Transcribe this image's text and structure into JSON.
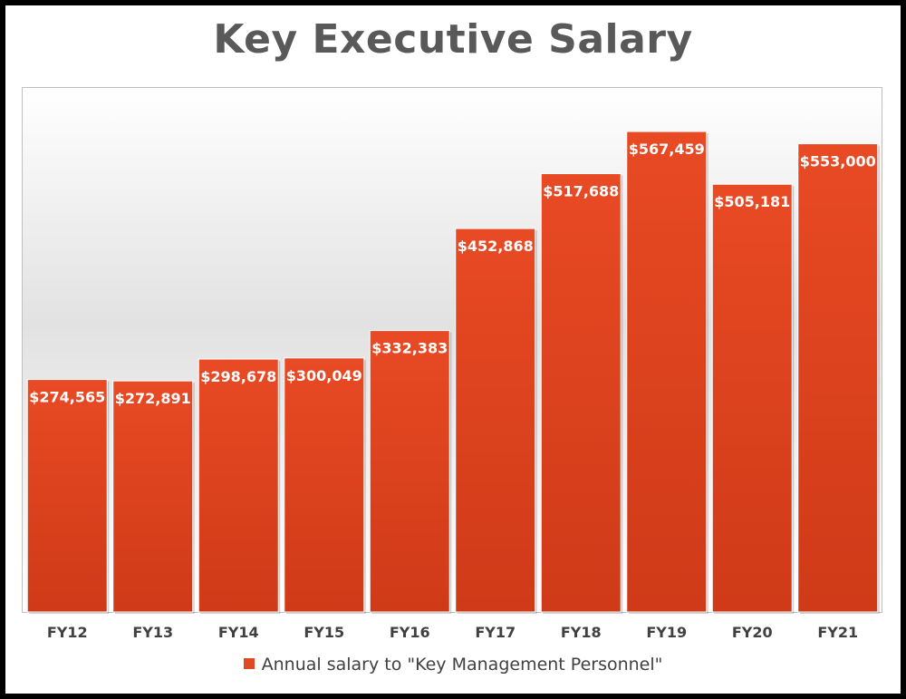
{
  "chart_data": {
    "type": "bar",
    "title": "Key Executive Salary",
    "xlabel": "",
    "ylabel": "",
    "ylim": [
      0,
      620000
    ],
    "grid": false,
    "legend_position": "bottom",
    "bar_color": "#e04a23",
    "label_color": "#ffffff",
    "categories": [
      "FY12",
      "FY13",
      "FY14",
      "FY15",
      "FY16",
      "FY17",
      "FY18",
      "FY19",
      "FY20",
      "FY21"
    ],
    "series": [
      {
        "name": "Annual salary to \"Key Management Personnel\"",
        "values": [
          274565,
          272891,
          298678,
          300049,
          332383,
          452868,
          517688,
          567459,
          505181,
          553000
        ],
        "labels": [
          "$274,565",
          "$272,891",
          "$298,678",
          "$300,049",
          "$332,383",
          "$452,868",
          "$517,688",
          "$567,459",
          "$505,181",
          "$553,000"
        ]
      }
    ]
  }
}
